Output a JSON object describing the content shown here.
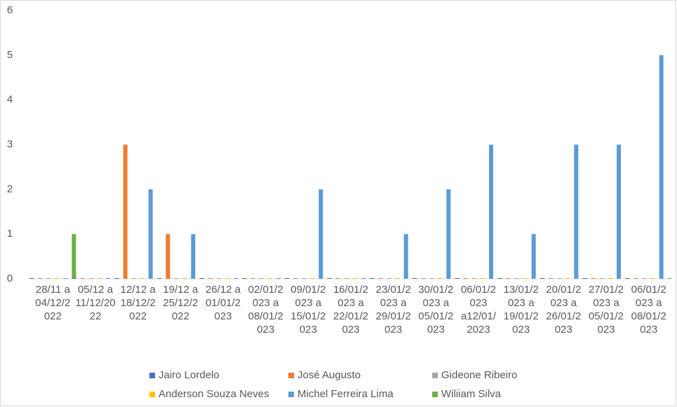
{
  "chart_data": {
    "type": "bar",
    "categories": [
      "28/11 a 04/12/2022",
      "05/12 a 11/12/2022",
      "12/12 a 18/12/2022",
      "19/12 a 25/12/2022",
      "26/12 a 01/01/2023",
      "02/01/2023 a 08/01/2023",
      "09/01/2023 a 15/01/2023",
      "16/01/2023 a 22/01/2023",
      "23/01/2023 a 29/01/2023",
      "30/01/2023 a 05/01/2023",
      "06/01/2023 a12/01/2023",
      "13/01/2023 a 19/01/2023",
      "20/01/2023 a 26/01/2023",
      "27/01/2023 a 05/01/2023",
      "06/01/2023 a 08/01/2023"
    ],
    "series": [
      {
        "name": "Jairo Lordelo",
        "color": "#4472c4",
        "values": [
          0,
          0,
          0,
          0,
          0,
          0,
          0,
          0,
          0,
          0,
          0,
          0,
          0,
          0,
          0
        ]
      },
      {
        "name": "José Augusto",
        "color": "#ed7d31",
        "values": [
          0,
          0,
          3,
          1,
          0,
          0,
          0,
          0,
          0,
          0,
          0,
          0,
          0,
          0,
          0
        ]
      },
      {
        "name": "Gideone Ribeiro",
        "color": "#a5a5a5",
        "values": [
          0,
          0,
          0,
          0,
          0,
          0,
          0,
          0,
          0,
          0,
          0,
          0,
          0,
          0,
          0
        ]
      },
      {
        "name": "Anderson Souza Neves",
        "color": "#ffc000",
        "values": [
          0,
          0,
          0,
          0,
          0,
          0,
          0,
          0,
          0,
          0,
          0,
          0,
          0,
          0,
          0
        ]
      },
      {
        "name": "Michel Ferreira Lima",
        "color": "#5b9bd5",
        "values": [
          0,
          0,
          2,
          1,
          0,
          0,
          2,
          0,
          1,
          2,
          3,
          1,
          3,
          3,
          5
        ]
      },
      {
        "name": "Wiliiam Silva",
        "color": "#70ad47",
        "values": [
          1,
          0,
          0,
          0,
          0,
          0,
          0,
          0,
          0,
          0,
          0,
          0,
          0,
          0,
          0
        ]
      }
    ],
    "ylim": [
      0,
      6
    ],
    "yticks": [
      0,
      1,
      2,
      3,
      4,
      5,
      6
    ],
    "grid": false,
    "legend": "bottom"
  }
}
